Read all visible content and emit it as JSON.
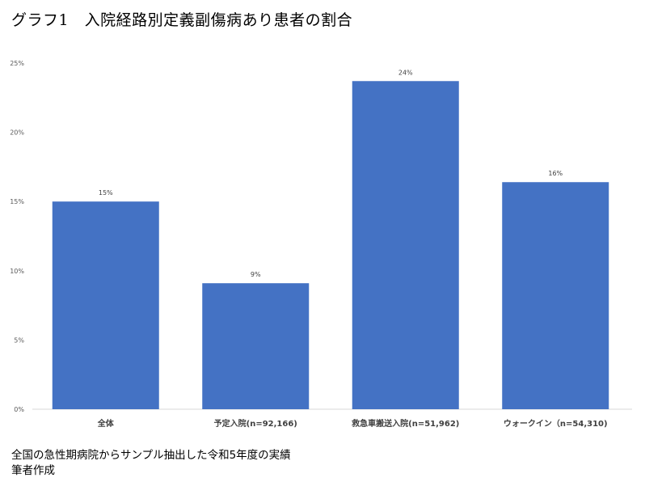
{
  "title": "グラフ1　入院経路別定義副傷病あり患者の割合",
  "notes": {
    "source": "全国の急性期病院からサンプル抽出した令和5年度の実績",
    "author": "筆者作成"
  },
  "chart_data": {
    "type": "bar",
    "categories": [
      "全体",
      "予定入院(n=92,166)",
      "救急車搬送入院(n=51,962)",
      "ウォークイン（n=54,310)"
    ],
    "values": [
      15,
      9,
      24,
      16
    ],
    "value_labels": [
      "15%",
      "9%",
      "24%",
      "16%"
    ],
    "precise_values": [
      15.0,
      9.1,
      23.7,
      16.4
    ],
    "y_ticks": [
      "0%",
      "5%",
      "10%",
      "15%",
      "20%",
      "25%"
    ],
    "ylim": [
      0,
      25
    ],
    "bar_color": "#4472C4",
    "grid": false
  }
}
